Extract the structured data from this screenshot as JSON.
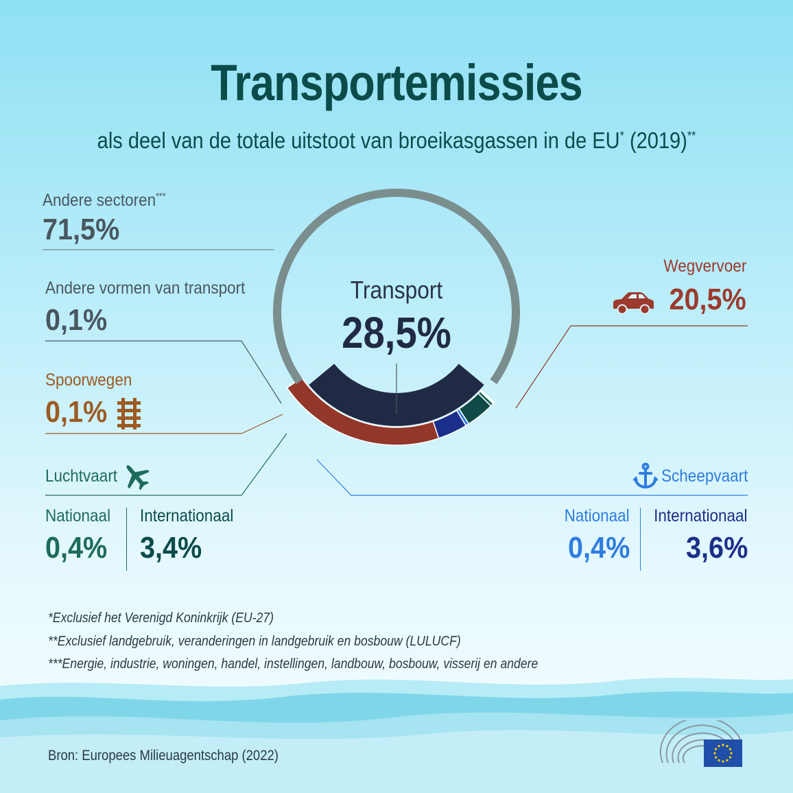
{
  "title": "Transportemissies",
  "subtitle": "als deel van de totale uitstoot van broeikasgassen in de EU",
  "subtitle_mark1": "*",
  "subtitle_year": " (2019)",
  "subtitle_mark2": "**",
  "center": {
    "label": "Transport",
    "value": "28,5%"
  },
  "labels": {
    "andere_sectoren": {
      "label": "Andere sectoren",
      "mark": "***",
      "value": "71,5%"
    },
    "andere_vormen": {
      "label": "Andere vormen van transport",
      "value": "0,1%"
    },
    "spoorwegen": {
      "label": "Spoorwegen",
      "value": "0,1%"
    },
    "luchtvaart": {
      "label": "Luchtvaart",
      "nationaal": "Nationaal",
      "nationaal_value": "0,4%",
      "internationaal": "Internationaal",
      "internationaal_value": "3,4%"
    },
    "wegvervoer": {
      "label": "Wegvervoer",
      "value": "20,5%"
    },
    "scheepvaart": {
      "label": "Scheepvaart",
      "nationaal": "Nationaal",
      "nationaal_value": "0,4%",
      "internationaal": "Internationaal",
      "internationaal_value": "3,6%"
    }
  },
  "footnotes": [
    "*Exclusief het Verenigd Koninkrijk (EU-27)",
    "**Exclusief landgebruik, veranderingen in landgebruik en bosbouw (LULUCF)",
    "***Energie, industrie, woningen, handel, instellingen, landbouw, bosbouw, visserij en andere"
  ],
  "source": "Bron: Europees Milieuagentschap (2022)",
  "icons": {
    "car": "car-icon",
    "rail": "rail-icon",
    "plane": "plane-icon",
    "anchor": "anchor-icon",
    "parliament": "parliament-icon",
    "eu_flag": "eu-flag-icon"
  },
  "colors": {
    "andere_sectoren": "#7b8e8e",
    "transport": "#212a45",
    "wegvervoer": "#93372b",
    "scheepvaart_internationaal": "#1b2f8a",
    "scheepvaart_nationaal": "#2f7de0",
    "luchtvaart_internationaal": "#0f4a46",
    "luchtvaart_nationaal": "#1d6b5a",
    "spoorwegen": "#9c5b23",
    "andere_vormen": "#4a5760"
  },
  "chart_data": {
    "type": "pie",
    "title": "Transportemissies",
    "total_slices": [
      {
        "name": "Andere sectoren",
        "value": 71.5
      },
      {
        "name": "Transport",
        "value": 28.5
      }
    ],
    "transport_breakdown": [
      {
        "name": "Wegvervoer",
        "value": 20.5
      },
      {
        "name": "Scheepvaart Internationaal",
        "value": 3.6
      },
      {
        "name": "Scheepvaart Nationaal",
        "value": 0.4
      },
      {
        "name": "Luchtvaart Internationaal",
        "value": 3.4
      },
      {
        "name": "Luchtvaart Nationaal",
        "value": 0.4
      },
      {
        "name": "Spoorwegen",
        "value": 0.1
      },
      {
        "name": "Andere vormen van transport",
        "value": 0.1
      }
    ],
    "unit": "%"
  }
}
